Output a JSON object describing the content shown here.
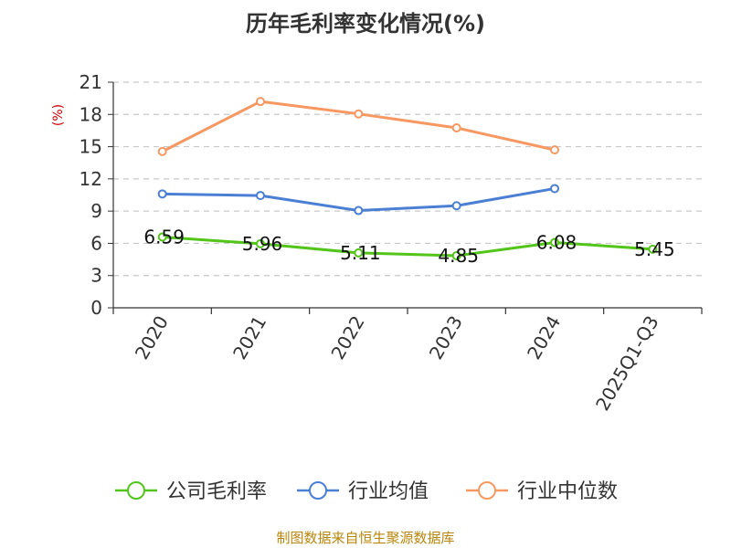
{
  "chart_data": {
    "type": "line",
    "title": "历年毛利率变化情况(%)",
    "unit_label": "(%)",
    "categories": [
      "2020",
      "2021",
      "2022",
      "2023",
      "2024",
      "2025Q1-Q3"
    ],
    "ylim": [
      0,
      21
    ],
    "yticks": [
      "0",
      "3",
      "6",
      "9",
      "12",
      "15",
      "18",
      "21"
    ],
    "grid": true,
    "legend_position": "bottom",
    "series": [
      {
        "name": "公司毛利率",
        "color": "#52c41a",
        "values": [
          6.59,
          5.96,
          5.11,
          4.85,
          6.08,
          5.45
        ],
        "labels": [
          "6.59",
          "5.96",
          "5.11",
          "4.85",
          "6.08",
          "5.45"
        ]
      },
      {
        "name": "行业均值",
        "color": "#4a7fd4",
        "values": [
          10.6,
          10.45,
          9.05,
          9.5,
          11.1,
          null
        ]
      },
      {
        "name": "行业中位数",
        "color": "#f79862",
        "values": [
          14.55,
          19.2,
          18.05,
          16.75,
          14.7,
          null
        ]
      }
    ],
    "source": "制图数据来自恒生聚源数据库"
  }
}
